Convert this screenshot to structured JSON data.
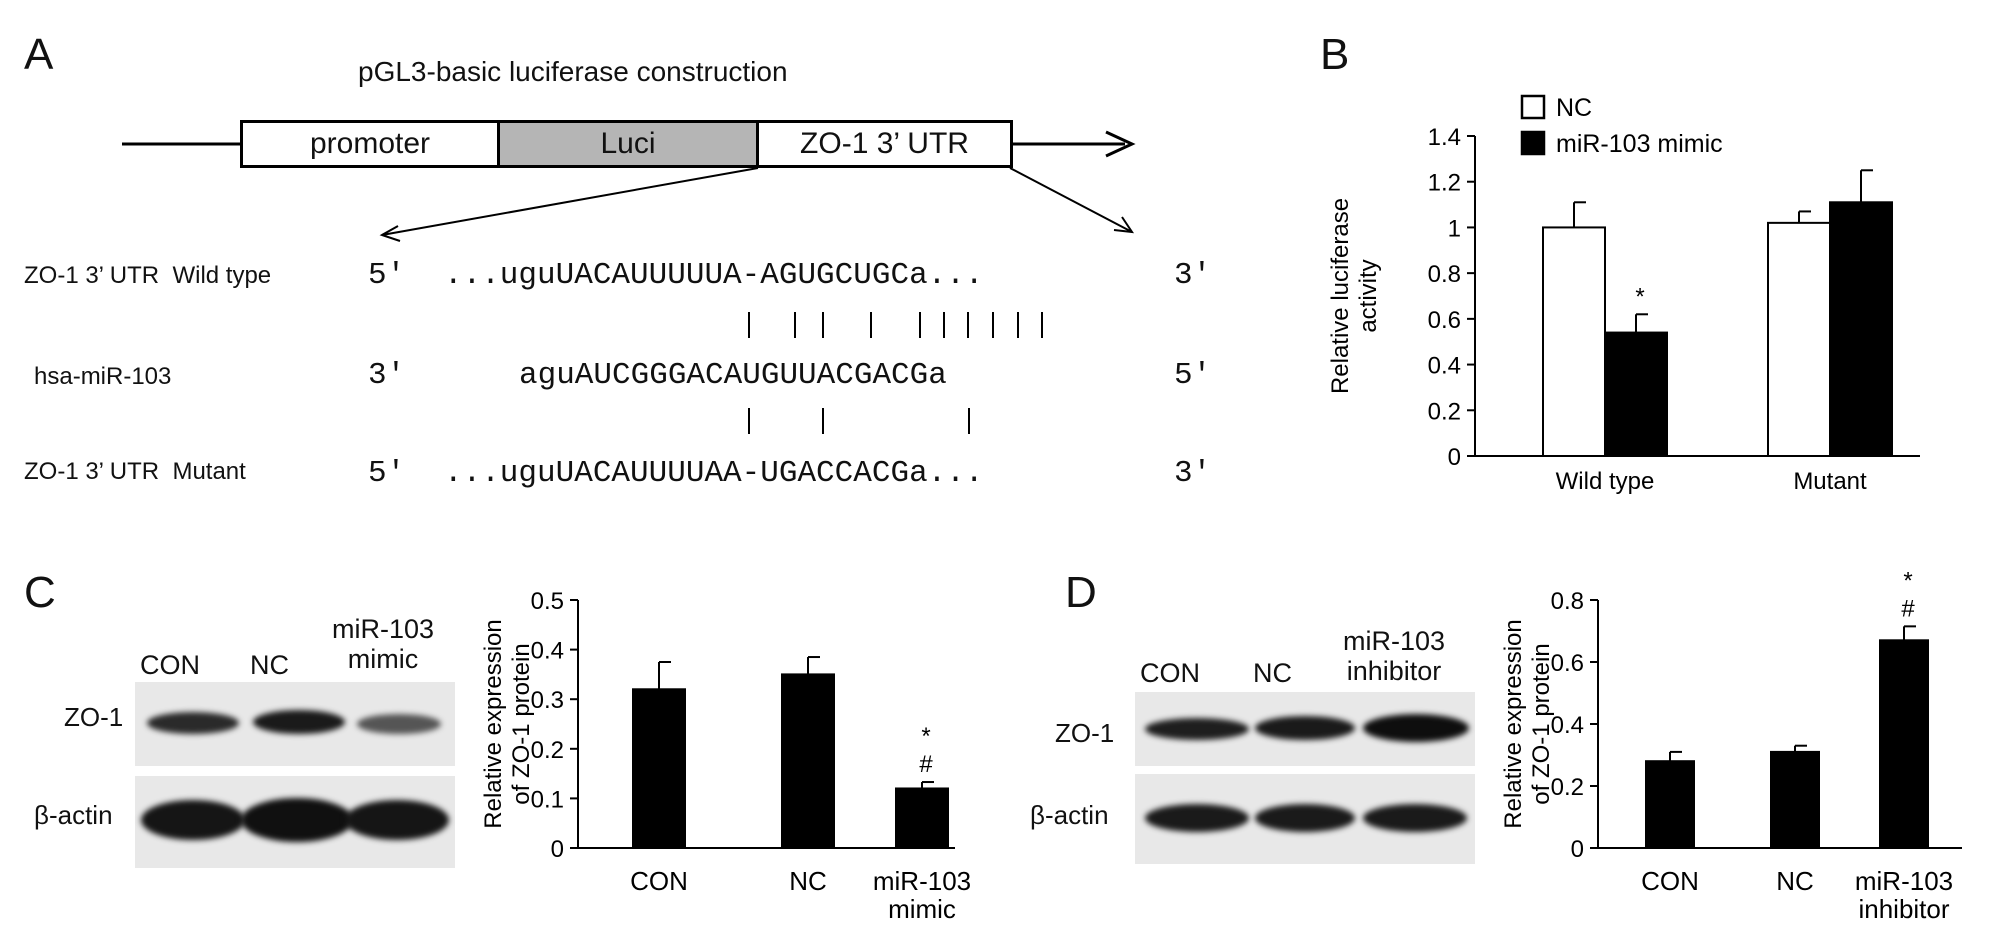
{
  "panels": {
    "a": "A",
    "b": "B",
    "c": "C",
    "d": "D"
  },
  "panel_a": {
    "title": "pGL3-basic luciferase construction",
    "construct": [
      "promoter",
      "Luci",
      "ZO-1 3’ UTR"
    ],
    "rows": [
      {
        "label": "ZO-1 3’ UTR  Wild type",
        "end_left": "5′",
        "seq": "...uguUACAUUUUUA-AGUGCUGCa...",
        "end_right": "3′"
      },
      {
        "label": "hsa-miR-103",
        "end_left": "3′",
        "seq": "aguAUCGGGACAUGUUACGACGa",
        "end_right": "5′"
      },
      {
        "label": "ZO-1 3’ UTR  Mutant",
        "end_left": "5′",
        "seq": "...uguUACAUUUUAA-UGACCACGa...",
        "end_right": "3′"
      }
    ]
  },
  "chart_data": [
    {
      "type": "bar",
      "panel": "B",
      "categories": [
        "Wild type",
        "Mutant"
      ],
      "series": [
        {
          "name": "NC",
          "values": [
            1.0,
            1.02
          ],
          "errors": [
            0.11,
            0.05
          ],
          "color": "#ffffff"
        },
        {
          "name": "miR-103 mimic",
          "values": [
            0.54,
            1.11
          ],
          "errors": [
            0.08,
            0.14
          ],
          "color": "#000000"
        }
      ],
      "annotations": [
        {
          "category": "Wild type",
          "series": "miR-103 mimic",
          "text": "*"
        }
      ],
      "ylabel": "Relative luciferase activity",
      "ylim": [
        0,
        1.4
      ],
      "yticks": [
        "0",
        "0.2",
        "0.4",
        "0.6",
        "0.8",
        "1",
        "1.2",
        "1.4"
      ],
      "legend": "top-left"
    },
    {
      "type": "bar",
      "panel": "C",
      "categories": [
        "CON",
        "NC",
        "miR-103 mimic"
      ],
      "values": [
        0.32,
        0.35,
        0.12
      ],
      "errors": [
        0.055,
        0.035,
        0.013
      ],
      "annotations": [
        {
          "category": "miR-103 mimic",
          "text": "*"
        },
        {
          "category": "miR-103 mimic",
          "text": "#"
        }
      ],
      "ylabel": "Relative expression of ZO-1 protein",
      "ylim": [
        0,
        0.5
      ],
      "yticks": [
        "0",
        "0.1",
        "0.2",
        "0.3",
        "0.4",
        "0.5"
      ]
    },
    {
      "type": "bar",
      "panel": "D",
      "categories": [
        "CON",
        "NC",
        "miR-103 inhibitor"
      ],
      "values": [
        0.28,
        0.31,
        0.67
      ],
      "errors": [
        0.03,
        0.02,
        0.045
      ],
      "annotations": [
        {
          "category": "miR-103 inhibitor",
          "text": "*"
        },
        {
          "category": "miR-103 inhibitor",
          "text": "#"
        }
      ],
      "ylabel": "Relative expression of ZO-1 protein",
      "ylim": [
        0,
        0.8
      ],
      "yticks": [
        "0",
        "0.2",
        "0.4",
        "0.6",
        "0.8"
      ]
    }
  ],
  "blot_c": {
    "lanes": [
      "CON",
      "NC",
      "miR-103 mimic"
    ],
    "rows": [
      "ZO-1",
      "β-actin"
    ]
  },
  "blot_d": {
    "lanes": [
      "CON",
      "NC",
      "miR-103 inhibitor"
    ],
    "rows": [
      "ZO-1",
      "β-actin"
    ]
  }
}
